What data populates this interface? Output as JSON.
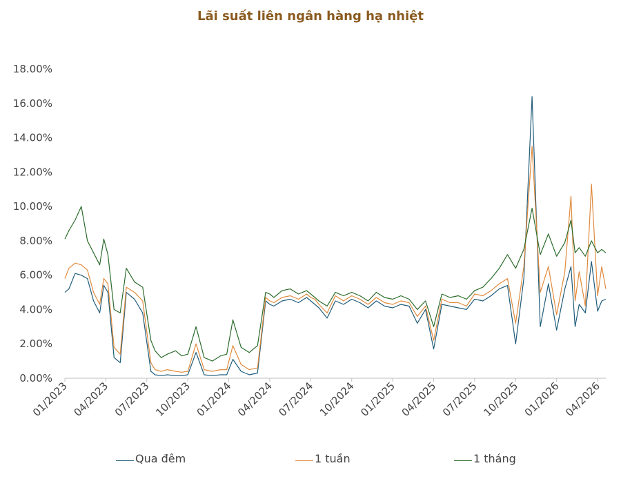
{
  "chart_data": {
    "type": "line",
    "title": "Lãi suất liên ngân hàng hạ nhiệt",
    "ylim": [
      0,
      18
    ],
    "yticks": [
      "0.00%",
      "2.00%",
      "4.00%",
      "6.00%",
      "8.00%",
      "10.00%",
      "12.00%",
      "14.00%",
      "16.00%",
      "18.00%"
    ],
    "xticks": [
      "01/2023",
      "04/2023",
      "07/2023",
      "10/2023",
      "01/2024",
      "04/2024",
      "07/2024",
      "10/2024",
      "01/2025",
      "04/2025",
      "07/2025",
      "10/2025",
      "01/2026",
      "04/2026"
    ],
    "grid": false,
    "legend_position": "bottom",
    "series": [
      {
        "name": "Qua đêm",
        "color": "#1f5c7a",
        "x": [
          0,
          0.1,
          0.25,
          0.4,
          0.55,
          0.7,
          0.85,
          0.95,
          1.05,
          1.2,
          1.35,
          1.5,
          1.7,
          1.9,
          2.1,
          2.2,
          2.35,
          2.5,
          2.7,
          2.85,
          3.0,
          3.2,
          3.4,
          3.6,
          3.8,
          3.95,
          4.1,
          4.3,
          4.5,
          4.7,
          4.9,
          5.0,
          5.1,
          5.3,
          5.5,
          5.7,
          5.9,
          6.0,
          6.1,
          6.2,
          6.4,
          6.6,
          6.8,
          7.0,
          7.2,
          7.4,
          7.6,
          7.8,
          8.0,
          8.2,
          8.4,
          8.6,
          8.8,
          9.0,
          9.2,
          9.4,
          9.6,
          9.8,
          10.0,
          10.2,
          10.4,
          10.6,
          10.8,
          11.0,
          11.2,
          11.4,
          11.6,
          11.8,
          12.0,
          12.2,
          12.35,
          12.45,
          12.55,
          12.7,
          12.85,
          13.0,
          13.1,
          13.2
        ],
        "values": [
          5.0,
          5.2,
          6.1,
          6.0,
          5.8,
          4.5,
          3.8,
          5.4,
          5.0,
          1.2,
          0.9,
          5.0,
          4.6,
          3.8,
          0.4,
          0.2,
          0.15,
          0.2,
          0.15,
          0.15,
          0.2,
          1.5,
          0.2,
          0.15,
          0.2,
          0.2,
          1.1,
          0.4,
          0.2,
          0.3,
          4.5,
          4.3,
          4.2,
          4.5,
          4.6,
          4.4,
          4.7,
          4.5,
          4.3,
          4.1,
          3.5,
          4.5,
          4.3,
          4.6,
          4.4,
          4.1,
          4.5,
          4.2,
          4.1,
          4.3,
          4.2,
          3.2,
          4.0,
          1.7,
          4.3,
          4.2,
          4.1,
          4.0,
          4.6,
          4.5,
          4.8,
          5.2,
          5.4,
          2.0,
          5.8,
          16.4,
          3.0,
          5.5,
          2.8,
          5.2,
          6.5,
          3.0,
          4.3,
          3.8,
          6.8,
          3.9,
          4.5,
          4.6
        ]
      },
      {
        "name": "1 tuần",
        "color": "#e08a3c",
        "x": [
          0,
          0.1,
          0.25,
          0.4,
          0.55,
          0.7,
          0.85,
          0.95,
          1.05,
          1.2,
          1.35,
          1.5,
          1.7,
          1.9,
          2.1,
          2.2,
          2.35,
          2.5,
          2.7,
          2.85,
          3.0,
          3.2,
          3.4,
          3.6,
          3.8,
          3.95,
          4.1,
          4.3,
          4.5,
          4.7,
          4.9,
          5.0,
          5.1,
          5.3,
          5.5,
          5.7,
          5.9,
          6.0,
          6.1,
          6.2,
          6.4,
          6.6,
          6.8,
          7.0,
          7.2,
          7.4,
          7.6,
          7.8,
          8.0,
          8.2,
          8.4,
          8.6,
          8.8,
          9.0,
          9.2,
          9.4,
          9.6,
          9.8,
          10.0,
          10.2,
          10.4,
          10.6,
          10.8,
          11.0,
          11.2,
          11.4,
          11.6,
          11.8,
          12.0,
          12.2,
          12.35,
          12.45,
          12.55,
          12.7,
          12.85,
          13.0,
          13.1,
          13.2
        ],
        "values": [
          5.8,
          6.4,
          6.7,
          6.6,
          6.3,
          5.0,
          4.3,
          5.8,
          5.5,
          1.8,
          1.4,
          5.3,
          5.0,
          4.5,
          0.9,
          0.5,
          0.4,
          0.5,
          0.4,
          0.35,
          0.4,
          2.0,
          0.5,
          0.4,
          0.5,
          0.5,
          1.9,
          0.8,
          0.5,
          0.6,
          4.7,
          4.5,
          4.4,
          4.7,
          4.8,
          4.6,
          4.9,
          4.7,
          4.6,
          4.3,
          3.8,
          4.8,
          4.5,
          4.8,
          4.6,
          4.3,
          4.7,
          4.4,
          4.3,
          4.5,
          4.4,
          3.6,
          4.2,
          2.2,
          4.6,
          4.4,
          4.4,
          4.2,
          4.9,
          4.8,
          5.1,
          5.5,
          5.8,
          3.2,
          6.5,
          13.5,
          5.0,
          6.5,
          3.7,
          6.2,
          10.6,
          4.5,
          6.2,
          4.2,
          11.3,
          4.8,
          6.5,
          5.2
        ]
      },
      {
        "name": "1 tháng",
        "color": "#2b6b2b",
        "x": [
          0,
          0.1,
          0.25,
          0.4,
          0.55,
          0.7,
          0.85,
          0.95,
          1.05,
          1.2,
          1.35,
          1.5,
          1.7,
          1.9,
          2.1,
          2.2,
          2.35,
          2.5,
          2.7,
          2.85,
          3.0,
          3.2,
          3.4,
          3.6,
          3.8,
          3.95,
          4.1,
          4.3,
          4.5,
          4.7,
          4.9,
          5.0,
          5.1,
          5.3,
          5.5,
          5.7,
          5.9,
          6.0,
          6.1,
          6.2,
          6.4,
          6.6,
          6.8,
          7.0,
          7.2,
          7.4,
          7.6,
          7.8,
          8.0,
          8.2,
          8.4,
          8.6,
          8.8,
          9.0,
          9.2,
          9.4,
          9.6,
          9.8,
          10.0,
          10.2,
          10.4,
          10.6,
          10.8,
          11.0,
          11.2,
          11.4,
          11.6,
          11.8,
          12.0,
          12.2,
          12.35,
          12.45,
          12.55,
          12.7,
          12.85,
          13.0,
          13.1,
          13.2
        ],
        "values": [
          8.1,
          8.6,
          9.2,
          10.0,
          8.0,
          7.3,
          6.6,
          8.1,
          7.2,
          4.0,
          3.8,
          6.4,
          5.6,
          5.3,
          2.2,
          1.6,
          1.2,
          1.4,
          1.6,
          1.3,
          1.4,
          3.0,
          1.2,
          1.0,
          1.3,
          1.4,
          3.4,
          1.8,
          1.5,
          1.9,
          5.0,
          4.9,
          4.7,
          5.1,
          5.2,
          4.9,
          5.1,
          4.9,
          4.7,
          4.5,
          4.2,
          5.0,
          4.8,
          5.0,
          4.8,
          4.5,
          5.0,
          4.7,
          4.6,
          4.8,
          4.6,
          4.0,
          4.5,
          3.0,
          4.9,
          4.7,
          4.8,
          4.6,
          5.1,
          5.3,
          5.8,
          6.4,
          7.2,
          6.4,
          7.5,
          9.9,
          7.2,
          8.4,
          7.1,
          7.9,
          9.2,
          7.3,
          7.6,
          7.1,
          8.0,
          7.3,
          7.5,
          7.3
        ]
      }
    ]
  }
}
